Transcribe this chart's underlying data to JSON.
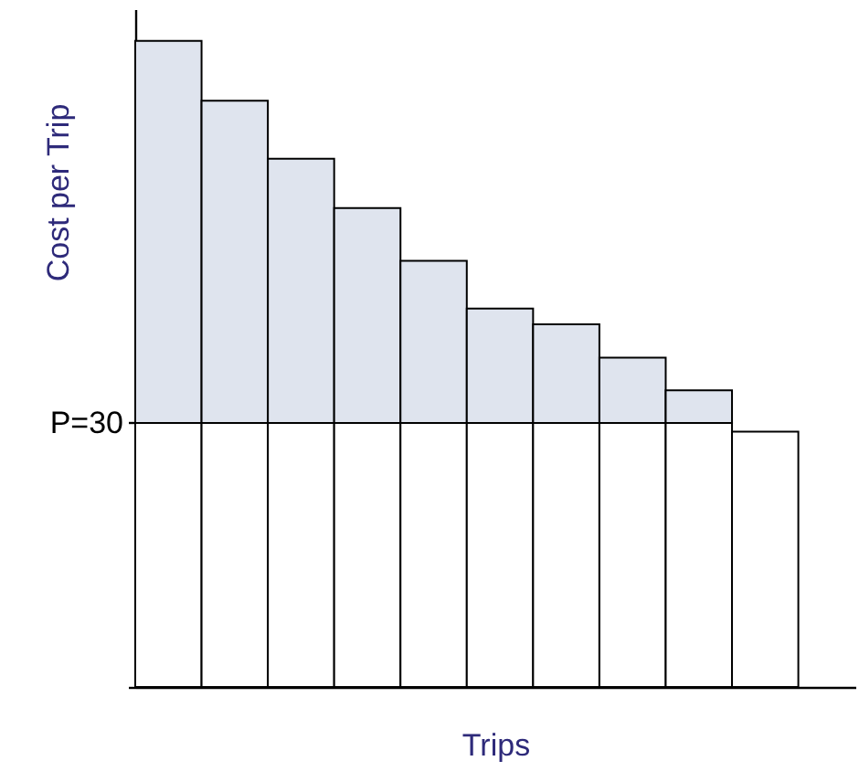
{
  "chart_data": {
    "type": "bar",
    "stacked": true,
    "xlabel": "Trips",
    "ylabel": "Cost per Trip",
    "categories": [
      null,
      null,
      null,
      null,
      null,
      null,
      null,
      null,
      null,
      null
    ],
    "series": [
      {
        "color": "#ffffff",
        "values": [
          30,
          30,
          30,
          30,
          30,
          30,
          30,
          30,
          30,
          29
        ]
      },
      {
        "color": "#dfe4ee",
        "values": [
          43.4,
          36.6,
          30,
          24.4,
          18.4,
          13,
          11.2,
          7.4,
          3.7,
          null
        ]
      }
    ],
    "ylim": [
      0,
      77
    ],
    "yticks": [
      {
        "value": 0,
        "label": null
      },
      {
        "value": 30,
        "label": "P=30"
      }
    ]
  }
}
